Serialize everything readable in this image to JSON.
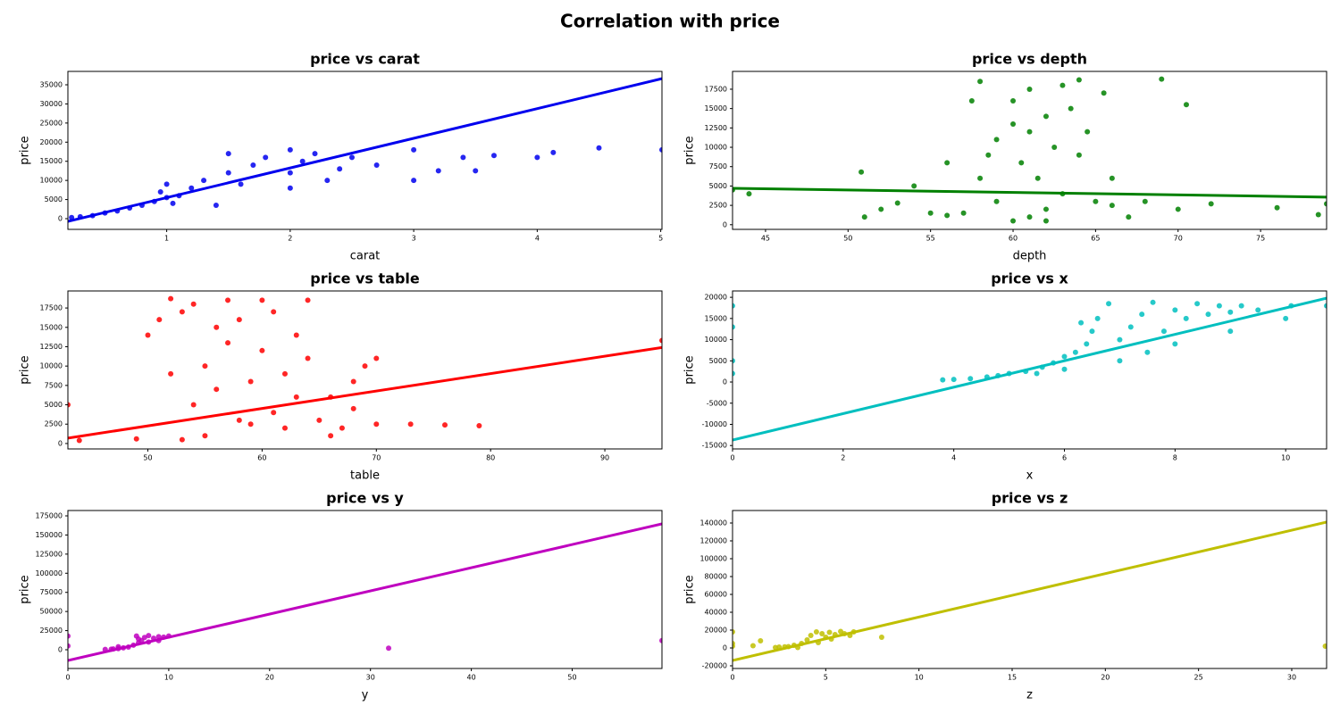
{
  "title": "Correlation with price",
  "chart_data": [
    {
      "type": "scatter",
      "title": "price vs carat",
      "x_label": "carat",
      "y_label": "price",
      "color": "#0000ee",
      "xlim": [
        0.2,
        5.01
      ],
      "ylim": [
        -2800,
        38500
      ],
      "xticks": [
        1,
        2,
        3,
        4,
        5
      ],
      "yticks": [
        0,
        5000,
        10000,
        15000,
        20000,
        25000,
        30000,
        35000
      ],
      "x": [
        0.3,
        0.4,
        0.5,
        0.6,
        0.7,
        0.8,
        0.9,
        1.0,
        1.0,
        1.1,
        1.2,
        1.3,
        1.5,
        1.5,
        1.6,
        1.7,
        1.8,
        2.0,
        2.0,
        2.1,
        2.2,
        2.3,
        2.5,
        2.7,
        3.0,
        3.0,
        3.2,
        3.4,
        3.5,
        3.65,
        4.0,
        4.13,
        4.5,
        5.01,
        0.23,
        1.05,
        1.4,
        2.0,
        2.4,
        0.95
      ],
      "values": [
        500,
        800,
        1500,
        2000,
        2800,
        3500,
        4500,
        5500,
        9000,
        6000,
        8000,
        10000,
        12000,
        17000,
        9000,
        14000,
        16000,
        18000,
        12000,
        15000,
        17000,
        10000,
        16000,
        14000,
        10000,
        18000,
        12500,
        16000,
        12500,
        16500,
        16000,
        17300,
        18500,
        18000,
        300,
        4000,
        3500,
        8000,
        13000,
        7000
      ],
      "trend_x": [
        0.2,
        5.01
      ],
      "trend_values": [
        -705,
        36600
      ]
    },
    {
      "type": "scatter",
      "title": "price vs depth",
      "x_label": "depth",
      "y_label": "price",
      "color": "#008000",
      "xlim": [
        43,
        79
      ],
      "ylim": [
        -600,
        19800
      ],
      "xticks": [
        45,
        50,
        55,
        60,
        65,
        70,
        75
      ],
      "yticks": [
        0,
        2500,
        5000,
        7500,
        10000,
        12500,
        15000,
        17500
      ],
      "x": [
        60,
        61,
        62,
        59,
        63,
        61.5,
        60.5,
        62.5,
        61,
        62,
        60,
        63,
        58,
        64,
        59,
        64,
        58,
        65,
        57,
        66,
        67,
        68,
        70,
        72,
        56,
        55,
        53,
        52,
        51,
        50.8,
        44,
        43,
        69,
        70.5,
        57.5,
        65.5,
        76,
        78.5,
        79,
        54,
        61,
        62,
        60,
        63.5,
        58.5,
        64.5,
        66,
        56
      ],
      "values": [
        500,
        1000,
        2000,
        3000,
        4000,
        6000,
        8000,
        10000,
        12000,
        14000,
        16000,
        18000,
        18500,
        18700,
        11000,
        9000,
        6000,
        3000,
        1500,
        2500,
        1000,
        3000,
        2000,
        2700,
        1200,
        1500,
        2800,
        2000,
        1000,
        6800,
        4000,
        4500,
        18800,
        15500,
        16000,
        17000,
        2200,
        1300,
        2700,
        5000,
        17500,
        500,
        13000,
        15000,
        9000,
        12000,
        6000,
        8000
      ],
      "trend_x": [
        43,
        79
      ],
      "trend_values": [
        4700,
        3570
      ]
    },
    {
      "type": "scatter",
      "title": "price vs table",
      "x_label": "table",
      "y_label": "price",
      "color": "#ff0000",
      "xlim": [
        43,
        95
      ],
      "ylim": [
        -700,
        19700
      ],
      "xticks": [
        50,
        60,
        70,
        80,
        90
      ],
      "yticks": [
        0,
        2500,
        5000,
        7500,
        10000,
        12500,
        15000,
        17500
      ],
      "x": [
        53,
        54,
        55,
        56,
        57,
        58,
        59,
        60,
        61,
        62,
        63,
        64,
        54,
        55,
        56,
        57,
        58,
        59,
        60,
        61,
        62,
        63,
        64,
        65,
        66,
        67,
        68,
        69,
        70,
        73,
        76,
        79,
        95,
        43,
        44,
        49,
        50,
        51,
        52,
        52,
        70,
        66,
        53,
        68
      ],
      "values": [
        500,
        5000,
        10000,
        15000,
        18500,
        3000,
        8000,
        12000,
        17000,
        2000,
        6000,
        11000,
        18000,
        1000,
        7000,
        13000,
        16000,
        2500,
        18500,
        4000,
        9000,
        14000,
        18500,
        3000,
        6000,
        2000,
        4500,
        10000,
        2500,
        2500,
        2400,
        2300,
        13300,
        5000,
        400,
        600,
        14000,
        16000,
        9000,
        18700,
        11000,
        1000,
        17000,
        8000
      ],
      "trend_x": [
        43,
        95
      ],
      "trend_values": [
        700,
        12400
      ]
    },
    {
      "type": "scatter",
      "title": "price vs x",
      "x_label": "x",
      "y_label": "price",
      "color": "#00bfbf",
      "xlim": [
        0,
        10.74
      ],
      "ylim": [
        -15800,
        21500
      ],
      "xticks": [
        0,
        2,
        4,
        6,
        8,
        10
      ],
      "yticks": [
        -15000,
        -10000,
        -5000,
        0,
        5000,
        10000,
        15000,
        20000
      ],
      "x": [
        3.8,
        4,
        4.3,
        4.6,
        5,
        5.3,
        5.6,
        5.8,
        6,
        6.2,
        6.4,
        6.5,
        6.6,
        6.8,
        7,
        7.2,
        7.4,
        7.6,
        7.8,
        8,
        8.2,
        8.4,
        8.6,
        8.8,
        9,
        9.2,
        9.5,
        10,
        10.1,
        10.74,
        0,
        0,
        0,
        0,
        6,
        7,
        7.5,
        8,
        5.5,
        4.8,
        6.3,
        9
      ],
      "values": [
        500,
        600,
        800,
        1200,
        2000,
        2500,
        3500,
        4500,
        6000,
        7000,
        9000,
        12000,
        15000,
        18500,
        10000,
        13000,
        16000,
        18800,
        12000,
        17000,
        15000,
        18500,
        16000,
        18000,
        16500,
        18000,
        17000,
        15000,
        18000,
        18000,
        18000,
        13000,
        5000,
        2000,
        3000,
        5000,
        7000,
        9000,
        2000,
        1500,
        14000,
        12000
      ],
      "trend_x": [
        0,
        10.74
      ],
      "trend_values": [
        -13700,
        19800
      ]
    },
    {
      "type": "scatter",
      "title": "price vs y",
      "x_label": "y",
      "y_label": "price",
      "color": "#bf00bf",
      "xlim": [
        0,
        58.9
      ],
      "ylim": [
        -24500,
        182000
      ],
      "xticks": [
        0,
        10,
        20,
        30,
        40,
        50
      ],
      "yticks": [
        0,
        25000,
        50000,
        75000,
        100000,
        125000,
        150000,
        175000
      ],
      "x": [
        3.7,
        4.3,
        5,
        5.5,
        6,
        6.5,
        7,
        7.3,
        7.6,
        8,
        8.5,
        9,
        9.5,
        10,
        7,
        8,
        5,
        0,
        0,
        31.8,
        58.9,
        6.8,
        9,
        4.5
      ],
      "values": [
        500,
        700,
        1500,
        2500,
        3500,
        6000,
        9000,
        12000,
        16000,
        18500,
        15000,
        17000,
        16500,
        18000,
        14000,
        10000,
        4000,
        18000,
        5000,
        2000,
        12000,
        18000,
        12000,
        1000
      ],
      "trend_x": [
        0,
        58.9
      ],
      "trend_values": [
        -14000,
        164500
      ]
    },
    {
      "type": "scatter",
      "title": "price vs z",
      "x_label": "z",
      "y_label": "price",
      "color": "#bfbf00",
      "xlim": [
        0,
        31.87
      ],
      "ylim": [
        -23000,
        154000
      ],
      "xticks": [
        0,
        5,
        10,
        15,
        20,
        25,
        30
      ],
      "yticks": [
        -20000,
        0,
        20000,
        40000,
        60000,
        80000,
        100000,
        120000,
        140000
      ],
      "x": [
        1.1,
        1.5,
        2.3,
        2.5,
        3,
        3.3,
        3.7,
        4,
        4.2,
        4.5,
        4.8,
        5,
        5.2,
        5.5,
        5.8,
        6,
        6.5,
        8,
        0,
        0,
        0,
        31.8,
        3.5,
        4.6,
        5.3,
        2.8,
        6.3
      ],
      "values": [
        2500,
        8000,
        500,
        1000,
        1500,
        3000,
        5000,
        9000,
        14000,
        18000,
        16000,
        12000,
        17500,
        15000,
        18500,
        16000,
        18000,
        12000,
        18000,
        5000,
        2000,
        2000,
        500,
        6000,
        10000,
        1200,
        14000
      ],
      "trend_x": [
        0,
        31.87
      ],
      "trend_values": [
        -14000,
        141000
      ]
    }
  ]
}
